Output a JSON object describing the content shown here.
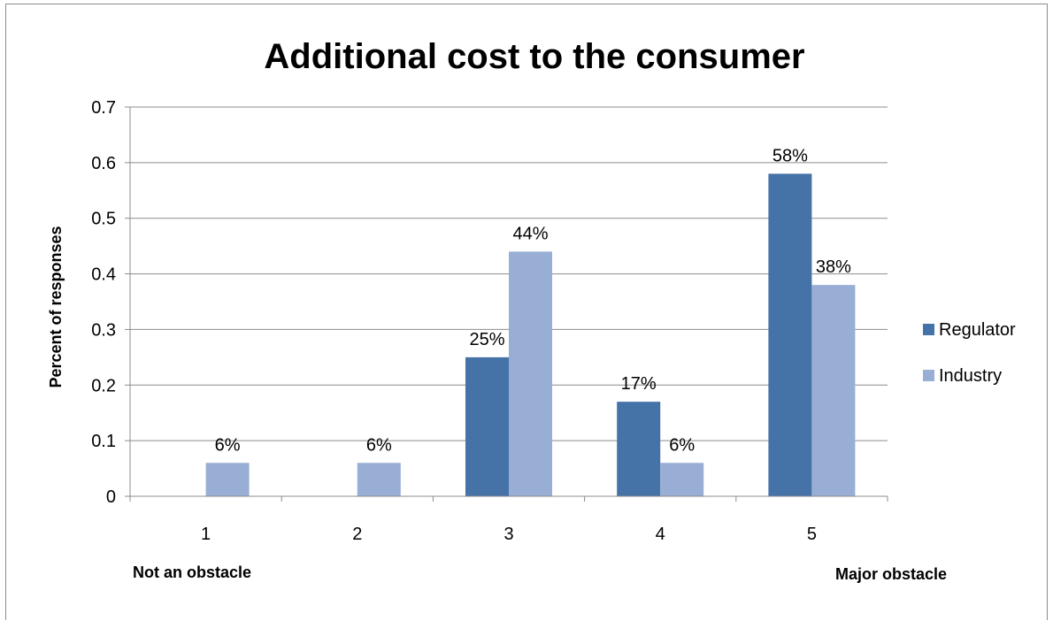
{
  "chart_data": {
    "type": "bar",
    "title": "Additional cost to the consumer",
    "ylabel": "Percent of responses",
    "xlabel_left": "Not an obstacle",
    "xlabel_right": "Major obstacle",
    "categories": [
      "1",
      "2",
      "3",
      "4",
      "5"
    ],
    "ylim": [
      0,
      0.7
    ],
    "yticks": [
      0,
      0.1,
      0.2,
      0.3,
      0.4,
      0.5,
      0.6,
      0.7
    ],
    "ytick_labels": [
      "0",
      "0.1",
      "0.2",
      "0.3",
      "0.4",
      "0.5",
      "0.6",
      "0.7"
    ],
    "grid": true,
    "legend_position": "right",
    "series": [
      {
        "name": "Regulator",
        "color": "#4572a7",
        "values": [
          null,
          null,
          0.25,
          0.17,
          0.58
        ],
        "labels": [
          "",
          "",
          "25%",
          "17%",
          "58%"
        ]
      },
      {
        "name": "Industry",
        "color": "#98aed5",
        "values": [
          0.06,
          0.06,
          0.44,
          0.06,
          0.38
        ],
        "labels": [
          "6%",
          "6%",
          "44%",
          "6%",
          "38%"
        ]
      }
    ]
  }
}
